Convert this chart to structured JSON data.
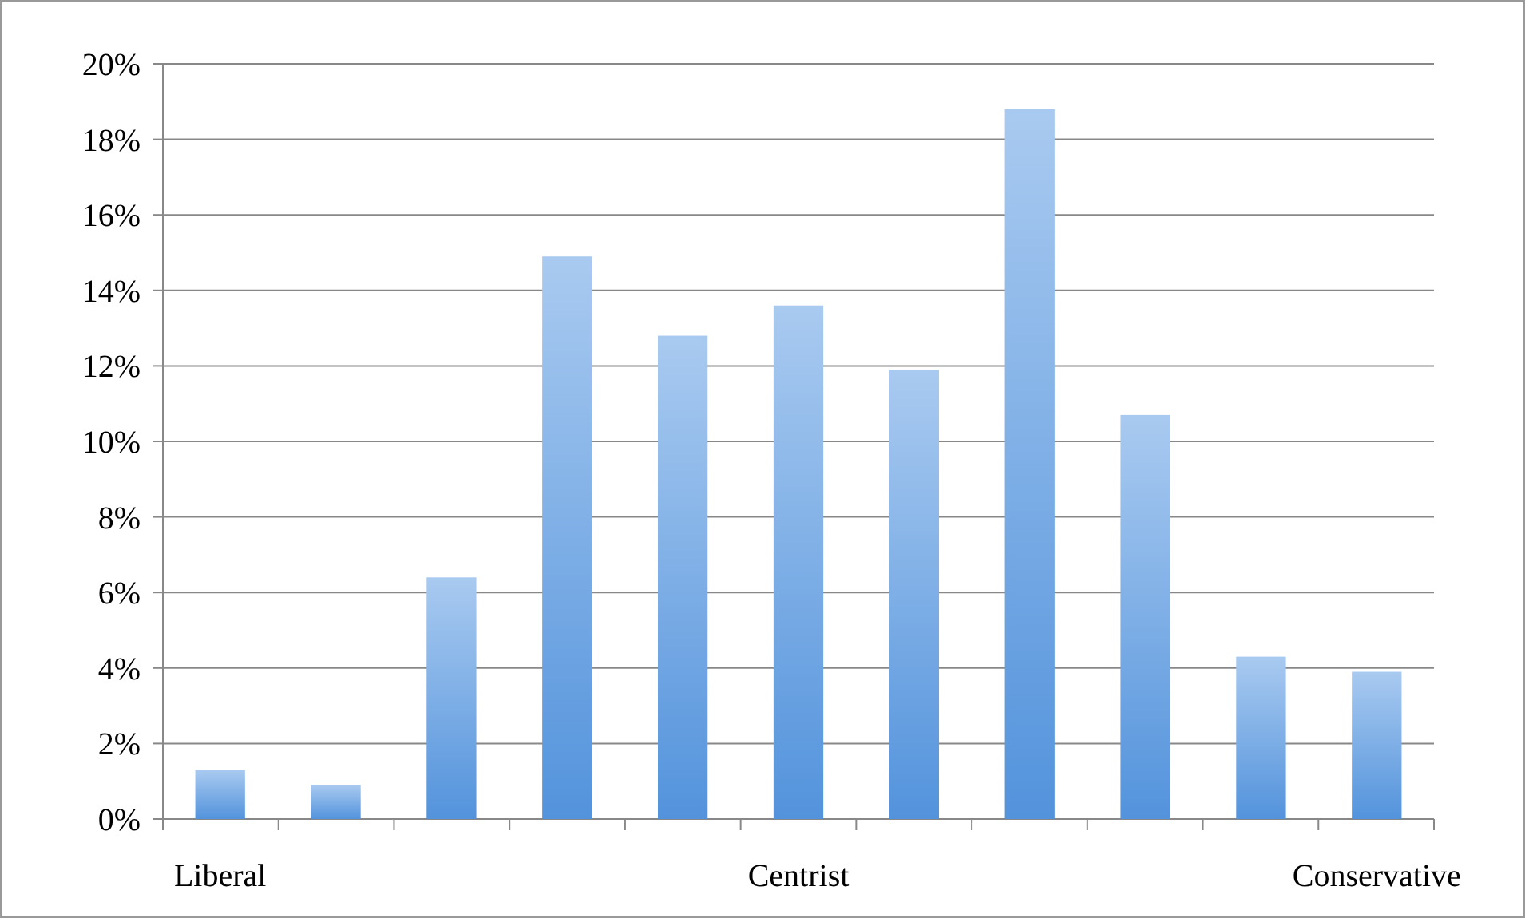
{
  "chart_data": {
    "type": "bar",
    "categories": [
      "Liberal",
      null,
      null,
      null,
      null,
      "Centrist",
      null,
      null,
      null,
      null,
      "Conservative"
    ],
    "values": [
      1.3,
      0.9,
      6.4,
      14.9,
      12.8,
      13.6,
      11.9,
      18.8,
      10.7,
      4.3,
      3.9
    ],
    "color": "#6fa6e6",
    "ylim": [
      0,
      20
    ],
    "yticks": [
      {
        "value": 0,
        "label": "0%"
      },
      {
        "value": 2,
        "label": "2%"
      },
      {
        "value": 4,
        "label": "4%"
      },
      {
        "value": 6,
        "label": "6%"
      },
      {
        "value": 8,
        "label": "8%"
      },
      {
        "value": 10,
        "label": "10%"
      },
      {
        "value": 12,
        "label": "12%"
      },
      {
        "value": 14,
        "label": "14%"
      },
      {
        "value": 16,
        "label": "16%"
      },
      {
        "value": 18,
        "label": "18%"
      },
      {
        "value": 20,
        "label": "20%"
      }
    ],
    "grid": "y"
  }
}
